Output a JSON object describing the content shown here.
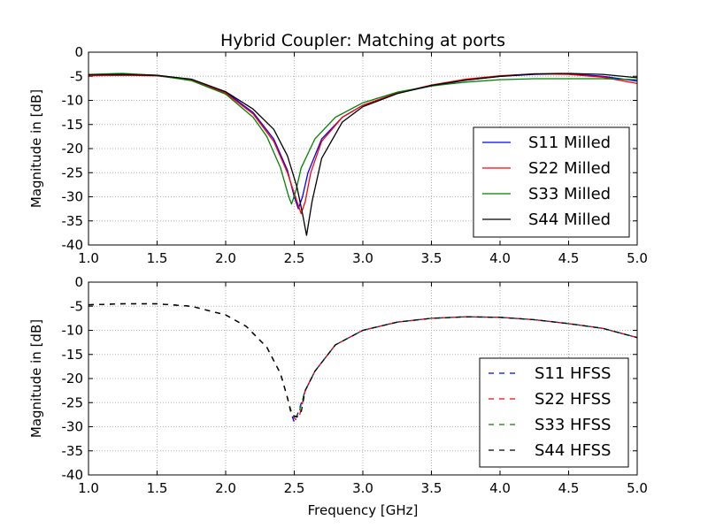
{
  "figure": {
    "title": "Hybrid Coupler: Matching at ports",
    "xlabel": "Frequency [GHz]"
  },
  "chart_data": [
    {
      "type": "line",
      "title": "Hybrid Coupler: Matching at ports",
      "xlabel": "",
      "ylabel": "Magnitude in [dB]",
      "xlim": [
        1.0,
        5.0
      ],
      "ylim": [
        -40,
        0
      ],
      "xticks": [
        "1.0",
        "1.5",
        "2.0",
        "2.5",
        "3.0",
        "3.5",
        "4.0",
        "4.5",
        "5.0"
      ],
      "yticks": [
        "0",
        "-5",
        "-10",
        "-15",
        "-20",
        "-25",
        "-30",
        "-35",
        "-40"
      ],
      "grid": true,
      "legend_position": "lower-right",
      "series": [
        {
          "name": "S11 Milled",
          "color": "#0000ff",
          "style": "solid",
          "x": [
            1.0,
            1.25,
            1.5,
            1.75,
            2.0,
            2.2,
            2.35,
            2.45,
            2.5,
            2.53,
            2.56,
            2.6,
            2.7,
            2.85,
            3.0,
            3.25,
            3.5,
            3.75,
            4.0,
            4.25,
            4.5,
            4.75,
            5.0
          ],
          "y": [
            -4.7,
            -4.6,
            -4.8,
            -5.7,
            -8.3,
            -12.5,
            -18,
            -24.5,
            -30,
            -32.5,
            -30,
            -25,
            -18,
            -13.5,
            -11,
            -8.5,
            -7,
            -5.8,
            -5,
            -4.6,
            -4.5,
            -5,
            -6
          ]
        },
        {
          "name": "S22 Milled",
          "color": "#ff0000",
          "style": "solid",
          "x": [
            1.0,
            1.25,
            1.5,
            1.75,
            2.0,
            2.2,
            2.35,
            2.45,
            2.52,
            2.55,
            2.58,
            2.62,
            2.7,
            2.85,
            3.0,
            3.25,
            3.5,
            3.75,
            4.0,
            4.25,
            4.5,
            4.75,
            5.0
          ],
          "y": [
            -4.9,
            -4.8,
            -4.9,
            -5.8,
            -8.5,
            -12.8,
            -18.5,
            -25,
            -31,
            -33.5,
            -31,
            -25,
            -18.5,
            -13.5,
            -11,
            -8.5,
            -6.8,
            -5.6,
            -4.9,
            -4.5,
            -4.6,
            -5.2,
            -6.5
          ]
        },
        {
          "name": "S33 Milled",
          "color": "#008000",
          "style": "solid",
          "x": [
            1.0,
            1.25,
            1.5,
            1.75,
            2.0,
            2.2,
            2.3,
            2.4,
            2.46,
            2.48,
            2.51,
            2.55,
            2.65,
            2.8,
            3.0,
            3.25,
            3.5,
            3.75,
            4.0,
            4.25,
            4.5,
            4.75,
            5.0
          ],
          "y": [
            -4.6,
            -4.4,
            -4.8,
            -5.9,
            -8.7,
            -13.5,
            -17.5,
            -24,
            -30,
            -31.5,
            -29,
            -24,
            -18,
            -13.5,
            -10.5,
            -8.3,
            -7,
            -6.2,
            -5.7,
            -5.5,
            -5.5,
            -5.5,
            -5.7
          ]
        },
        {
          "name": "S44 Milled",
          "color": "#000000",
          "style": "solid",
          "x": [
            1.0,
            1.25,
            1.5,
            1.75,
            2.0,
            2.2,
            2.35,
            2.45,
            2.52,
            2.56,
            2.59,
            2.63,
            2.7,
            2.85,
            3.0,
            3.25,
            3.5,
            3.75,
            4.0,
            4.25,
            4.5,
            4.75,
            5.0
          ],
          "y": [
            -4.7,
            -4.6,
            -4.8,
            -5.6,
            -8.2,
            -11.8,
            -16,
            -21.5,
            -28,
            -33.5,
            -38,
            -31,
            -22,
            -14.5,
            -11.3,
            -8.6,
            -6.9,
            -5.8,
            -5,
            -4.5,
            -4.4,
            -4.6,
            -5.3
          ]
        }
      ]
    },
    {
      "type": "line",
      "title": "",
      "xlabel": "Frequency [GHz]",
      "ylabel": "Magnitude in [dB]",
      "xlim": [
        1.0,
        5.0
      ],
      "ylim": [
        -40,
        0
      ],
      "xticks": [
        "1.0",
        "1.5",
        "2.0",
        "2.5",
        "3.0",
        "3.5",
        "4.0",
        "4.5",
        "5.0"
      ],
      "yticks": [
        "0",
        "-5",
        "-10",
        "-15",
        "-20",
        "-25",
        "-30",
        "-35",
        "-40"
      ],
      "grid": true,
      "legend_position": "lower-right",
      "series": [
        {
          "name": "S11 HFSS",
          "color": "#0000ff",
          "style": "dashed",
          "x": [
            1.0,
            1.25,
            1.5,
            1.75,
            2.0,
            2.15,
            2.3,
            2.4,
            2.45,
            2.48,
            2.5,
            2.53,
            2.58,
            2.65,
            2.8,
            3.0,
            3.25,
            3.5,
            3.75,
            4.0,
            4.25,
            4.5,
            4.75,
            5.0
          ],
          "y": [
            -4.7,
            -4.5,
            -4.5,
            -5,
            -6.8,
            -9.2,
            -13.5,
            -19,
            -24,
            -27.5,
            -29,
            -27,
            -22.5,
            -18.5,
            -13,
            -10,
            -8.3,
            -7.5,
            -7.2,
            -7.3,
            -7.8,
            -8.6,
            -9.6,
            -11.5
          ]
        },
        {
          "name": "S22 HFSS",
          "color": "#ff0000",
          "style": "dashed",
          "x": [
            1.0,
            1.25,
            1.5,
            1.75,
            2.0,
            2.15,
            2.3,
            2.4,
            2.45,
            2.48,
            2.51,
            2.54,
            2.58,
            2.65,
            2.8,
            3.0,
            3.25,
            3.5,
            3.75,
            4.0,
            4.25,
            4.5,
            4.75,
            5.0
          ],
          "y": [
            -4.7,
            -4.5,
            -4.5,
            -5,
            -6.8,
            -9.2,
            -13.5,
            -19,
            -24,
            -27.5,
            -28.5,
            -27.5,
            -22.5,
            -18.5,
            -13,
            -10,
            -8.3,
            -7.5,
            -7.2,
            -7.3,
            -7.8,
            -8.6,
            -9.6,
            -11.5
          ]
        },
        {
          "name": "S33 HFSS",
          "color": "#008000",
          "style": "dashed",
          "x": [
            1.0,
            1.25,
            1.5,
            1.75,
            2.0,
            2.15,
            2.3,
            2.4,
            2.45,
            2.48,
            2.5,
            2.53,
            2.58,
            2.65,
            2.8,
            3.0,
            3.25,
            3.5,
            3.75,
            4.0,
            4.25,
            4.5,
            4.75,
            5.0
          ],
          "y": [
            -4.7,
            -4.5,
            -4.5,
            -5,
            -6.8,
            -9.2,
            -13.5,
            -19,
            -24,
            -27,
            -28,
            -27.5,
            -22.5,
            -18.5,
            -13,
            -10,
            -8.3,
            -7.5,
            -7.2,
            -7.3,
            -7.8,
            -8.6,
            -9.6,
            -11.5
          ]
        },
        {
          "name": "S44 HFSS",
          "color": "#000000",
          "style": "dashed",
          "x": [
            1.0,
            1.25,
            1.5,
            1.75,
            2.0,
            2.15,
            2.3,
            2.4,
            2.45,
            2.48,
            2.52,
            2.55,
            2.58,
            2.65,
            2.8,
            3.0,
            3.25,
            3.5,
            3.75,
            4.0,
            4.25,
            4.5,
            4.75,
            5.0
          ],
          "y": [
            -4.7,
            -4.5,
            -4.5,
            -5,
            -6.8,
            -9.2,
            -13.5,
            -19,
            -24,
            -27.5,
            -28,
            -27,
            -22.5,
            -18.5,
            -13,
            -10,
            -8.3,
            -7.5,
            -7.2,
            -7.3,
            -7.8,
            -8.6,
            -9.6,
            -11.5
          ]
        }
      ]
    }
  ]
}
